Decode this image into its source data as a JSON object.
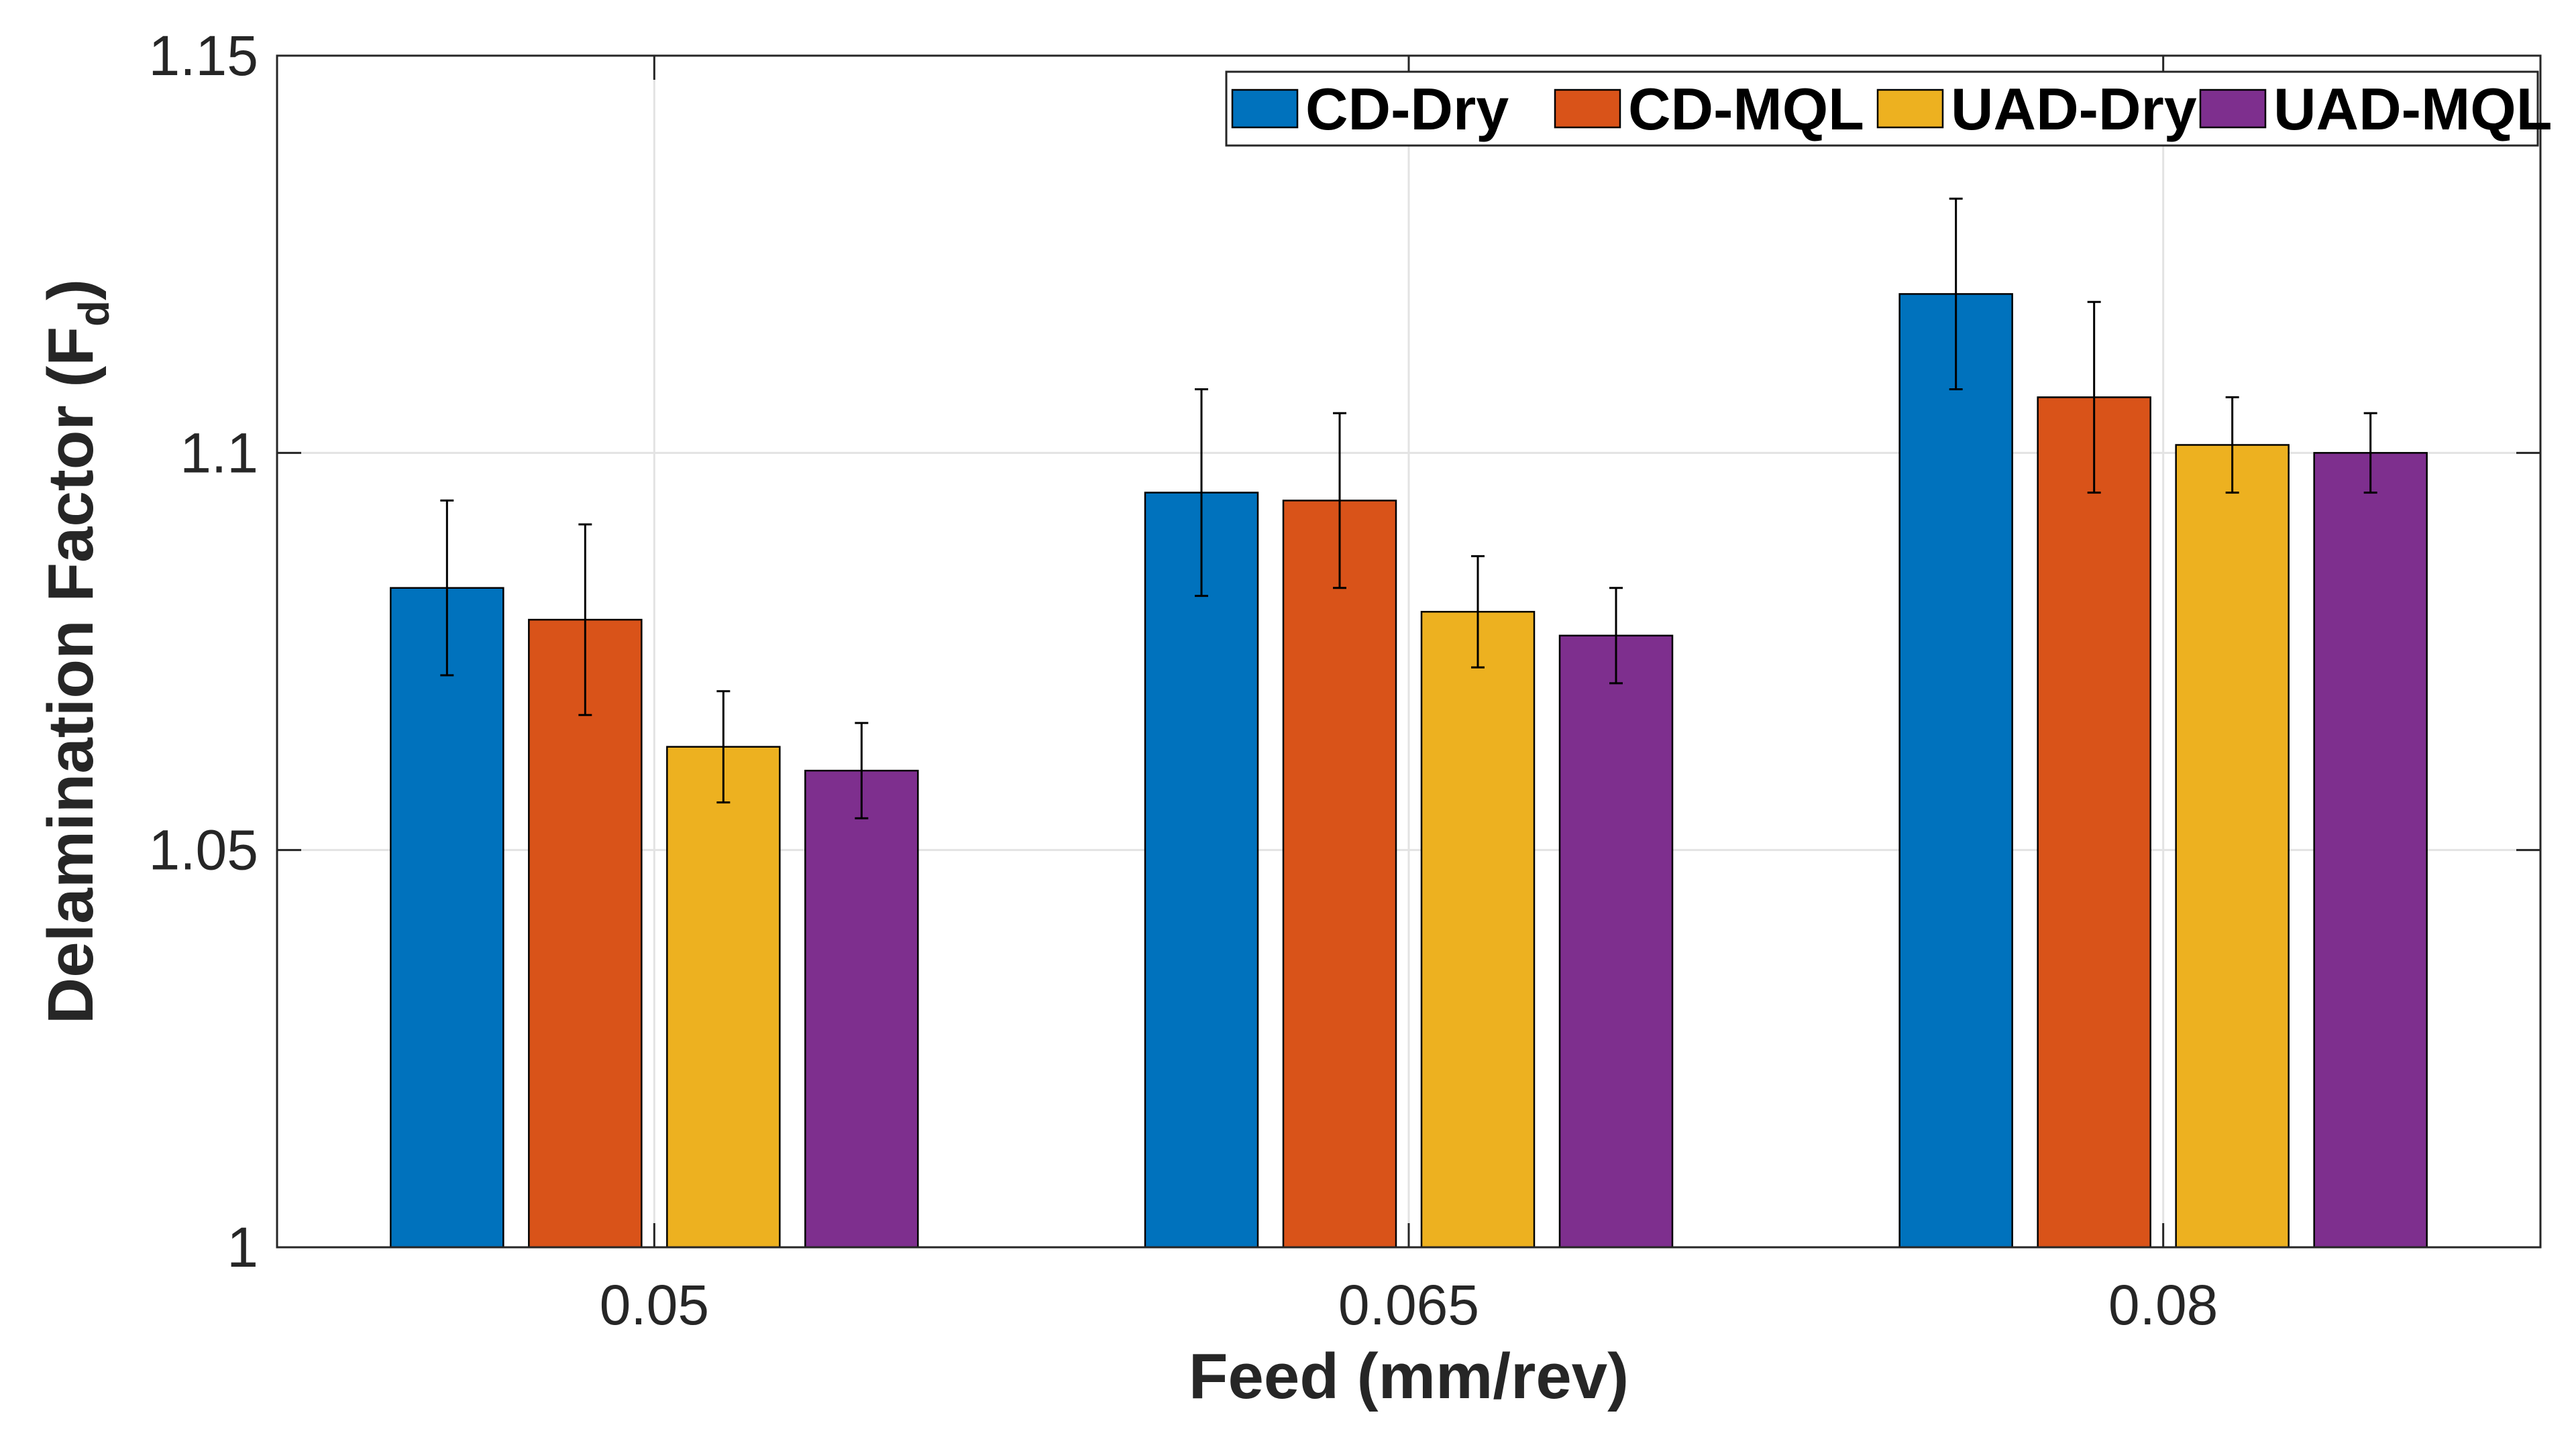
{
  "chart_data": {
    "type": "bar",
    "title": "",
    "xlabel": "Feed (mm/rev)",
    "ylabel": "Delamination Factor  (F",
    "ylabel_subscript": "d",
    "ylabel_close": ")",
    "categories": [
      "0.05",
      "0.065",
      "0.08"
    ],
    "ylim": [
      1,
      1.15
    ],
    "yticks": [
      1,
      1.05,
      1.1,
      1.15
    ],
    "ytick_labels": [
      "1",
      "1.05",
      "1.1",
      "1.15"
    ],
    "grid": true,
    "legend_position": "top-right",
    "series": [
      {
        "name": "CD-Dry",
        "color": "#0072BD",
        "values": [
          1.083,
          1.095,
          1.12
        ],
        "err_low": [
          1.072,
          1.082,
          1.108
        ],
        "err_high": [
          1.094,
          1.108,
          1.132
        ]
      },
      {
        "name": "CD-MQL",
        "color": "#D95319",
        "values": [
          1.079,
          1.094,
          1.107
        ],
        "err_low": [
          1.067,
          1.083,
          1.095
        ],
        "err_high": [
          1.091,
          1.105,
          1.119
        ]
      },
      {
        "name": "UAD-Dry",
        "color": "#EDB120",
        "values": [
          1.063,
          1.08,
          1.101
        ],
        "err_low": [
          1.056,
          1.073,
          1.095
        ],
        "err_high": [
          1.07,
          1.087,
          1.107
        ]
      },
      {
        "name": "UAD-MQL",
        "color": "#7E2F8E",
        "values": [
          1.06,
          1.077,
          1.1
        ],
        "err_low": [
          1.054,
          1.071,
          1.095
        ],
        "err_high": [
          1.066,
          1.083,
          1.105
        ]
      }
    ]
  }
}
